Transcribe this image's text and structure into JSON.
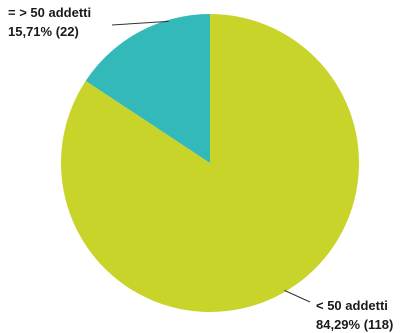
{
  "chart_data": {
    "type": "pie",
    "title": "",
    "slices": [
      {
        "label": "< 50 addetti",
        "value_label": "84,29% (118)",
        "percent": 84.29,
        "count": 118,
        "color": "#c9d42a"
      },
      {
        "label": "= > 50 addetti",
        "value_label": "15,71% (22)",
        "percent": 15.71,
        "count": 22,
        "color": "#34b9bb"
      }
    ],
    "start_angle_deg": 0,
    "direction": "clockwise",
    "legend": "none"
  }
}
